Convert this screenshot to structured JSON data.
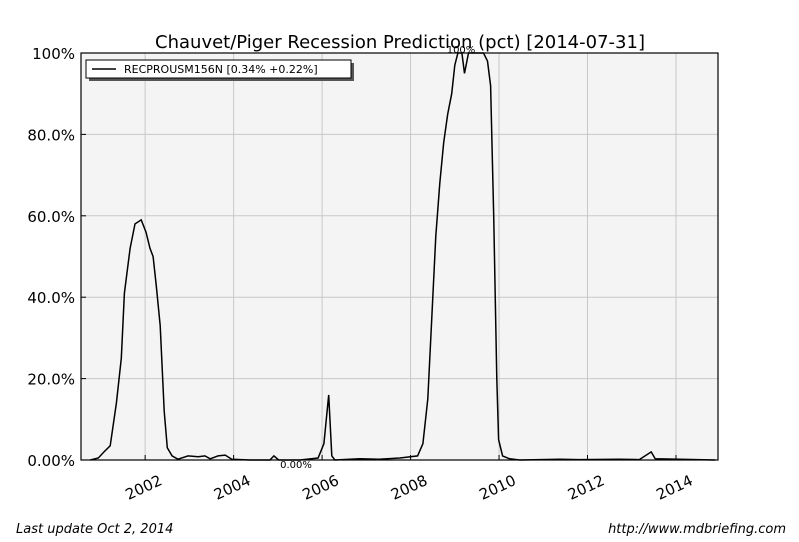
{
  "chart_data": {
    "type": "line",
    "title": "Chauvet/Piger Recession Prediction (pct) [2014-07-31]",
    "annotations": [
      "100%",
      "0.00%"
    ],
    "footer_left": "Last update Oct  2, 2014",
    "footer_right": "http://www.mdbriefing.com",
    "x": [
      2000.76,
      2000.94,
      2001.07,
      2001.21,
      2001.35,
      2001.46,
      2001.53,
      2001.66,
      2001.77,
      2001.91,
      2002.02,
      2002.11,
      2002.18,
      2002.25,
      2002.34,
      2002.43,
      2002.5,
      2002.61,
      2002.74,
      2002.97,
      2003.2,
      2003.35,
      2003.47,
      2003.65,
      2003.81,
      2003.96,
      2004.37,
      2004.82,
      2004.91,
      2005.02,
      2005.5,
      2005.91,
      2006.04,
      2006.15,
      2006.22,
      2006.29,
      2006.85,
      2007.3,
      2007.76,
      2008.16,
      2008.28,
      2008.39,
      2008.48,
      2008.57,
      2008.66,
      2008.75,
      2008.84,
      2008.93,
      2009.0,
      2009.07,
      2009.16,
      2009.22,
      2009.31,
      2009.45,
      2009.65,
      2009.74,
      2009.81,
      2009.88,
      2009.95,
      2009.99,
      2010.08,
      2010.24,
      2010.47,
      2011.37,
      2011.82,
      2012.72,
      2013.17,
      2013.44,
      2013.53,
      2014.08,
      2014.89
    ],
    "series": [
      {
        "name": "RECPROUSM156N [0.34% +0.22%]",
        "color": "#000000",
        "values": [
          0,
          0.5,
          2,
          3.5,
          14,
          25,
          41,
          52,
          58,
          59,
          56,
          52,
          50,
          43,
          33,
          12,
          3,
          1,
          0.2,
          1,
          0.8,
          1,
          0.3,
          1,
          1.2,
          0.2,
          0,
          0,
          1,
          0,
          0,
          0.5,
          4,
          16,
          1,
          0,
          0.3,
          0.2,
          0.5,
          1,
          4,
          15,
          35,
          55,
          68,
          78,
          85,
          90,
          97,
          100,
          100,
          95,
          100,
          100,
          100,
          98,
          92,
          60,
          20,
          5,
          1,
          0.3,
          0,
          0.2,
          0.1,
          0.2,
          0.1,
          2,
          0.3,
          0.2,
          0
        ]
      }
    ],
    "xlim": [
      2000.55,
      2014.95
    ],
    "ylim": [
      0,
      100
    ],
    "xticks": [
      2002,
      2004,
      2006,
      2008,
      2010,
      2012,
      2014
    ],
    "yticks": [
      {
        "value": 0,
        "label": "0.00%"
      },
      {
        "value": 20,
        "label": "20.0%"
      },
      {
        "value": 40,
        "label": "40.0%"
      },
      {
        "value": 60,
        "label": "60.0%"
      },
      {
        "value": 80,
        "label": "80.0%"
      },
      {
        "value": 100,
        "label": "100%"
      }
    ],
    "grid": true,
    "legend": "upper left"
  }
}
